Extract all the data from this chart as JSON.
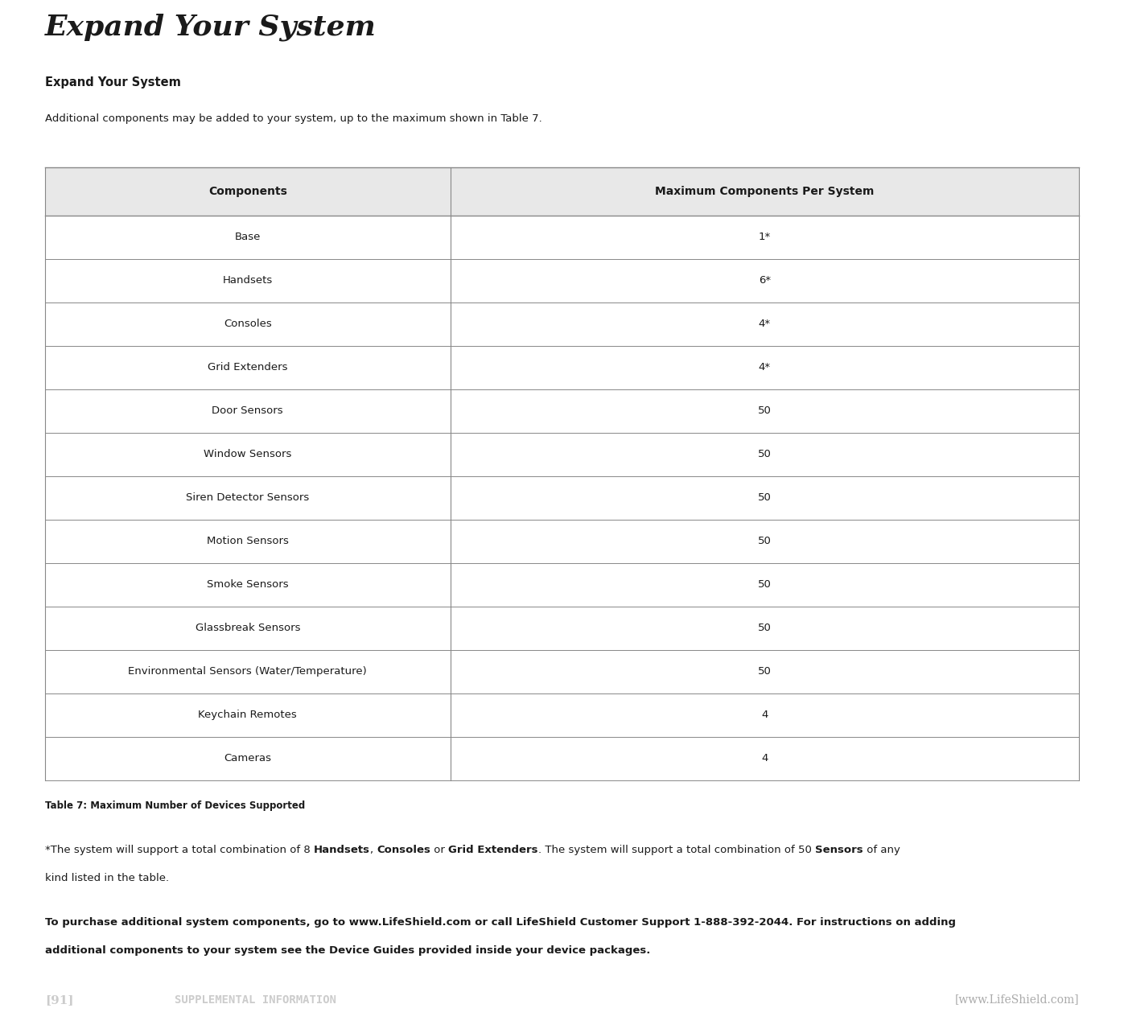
{
  "page_title": "Expand Your System",
  "header_bg": "#d0d0d0",
  "footer_bg": "#2a2220",
  "footer_page": "[91]",
  "footer_center": "SUPPLEMENTAL INFORMATION",
  "footer_right": "[www.LifeShield.com]",
  "section_title": "Expand Your System",
  "section_intro": "Additional components may be added to your system, up to the maximum shown in Table 7.",
  "table_header": [
    "Components",
    "Maximum Components Per System"
  ],
  "table_rows": [
    [
      "Base",
      "1*"
    ],
    [
      "Handsets",
      "6*"
    ],
    [
      "Consoles",
      "4*"
    ],
    [
      "Grid Extenders",
      "4*"
    ],
    [
      "Door Sensors",
      "50"
    ],
    [
      "Window Sensors",
      "50"
    ],
    [
      "Siren Detector Sensors",
      "50"
    ],
    [
      "Motion Sensors",
      "50"
    ],
    [
      "Smoke Sensors",
      "50"
    ],
    [
      "Glassbreak Sensors",
      "50"
    ],
    [
      "Environmental Sensors (Water/Temperature)",
      "50"
    ],
    [
      "Keychain Remotes",
      "4"
    ],
    [
      "Cameras",
      "4"
    ]
  ],
  "table_caption": "Table 7: Maximum Number of Devices Supported",
  "footnote1_parts": [
    {
      "text": "*The system will support a total combination of 8 ",
      "bold": false
    },
    {
      "text": "Handsets",
      "bold": true
    },
    {
      "text": ", ",
      "bold": false
    },
    {
      "text": "Consoles",
      "bold": true
    },
    {
      "text": " or ",
      "bold": false
    },
    {
      "text": "Grid Extenders",
      "bold": true
    },
    {
      "text": ". The system will support a total combination of 50 ",
      "bold": false
    },
    {
      "text": "Sensors",
      "bold": true
    },
    {
      "text": " of any",
      "bold": false
    }
  ],
  "footnote1_line2": "kind listed in the table.",
  "footnote2_line1": "To purchase additional system components, go to www.LifeShield.com or call LifeShield Customer Support 1-888-392-2044. For instructions on adding",
  "footnote2_line2": "additional components to your system see the Device Guides provided inside your device packages.",
  "bg_color": "#ffffff",
  "table_border_color": "#888888",
  "table_header_bg": "#e8e8e8",
  "text_color": "#1a1a1a"
}
